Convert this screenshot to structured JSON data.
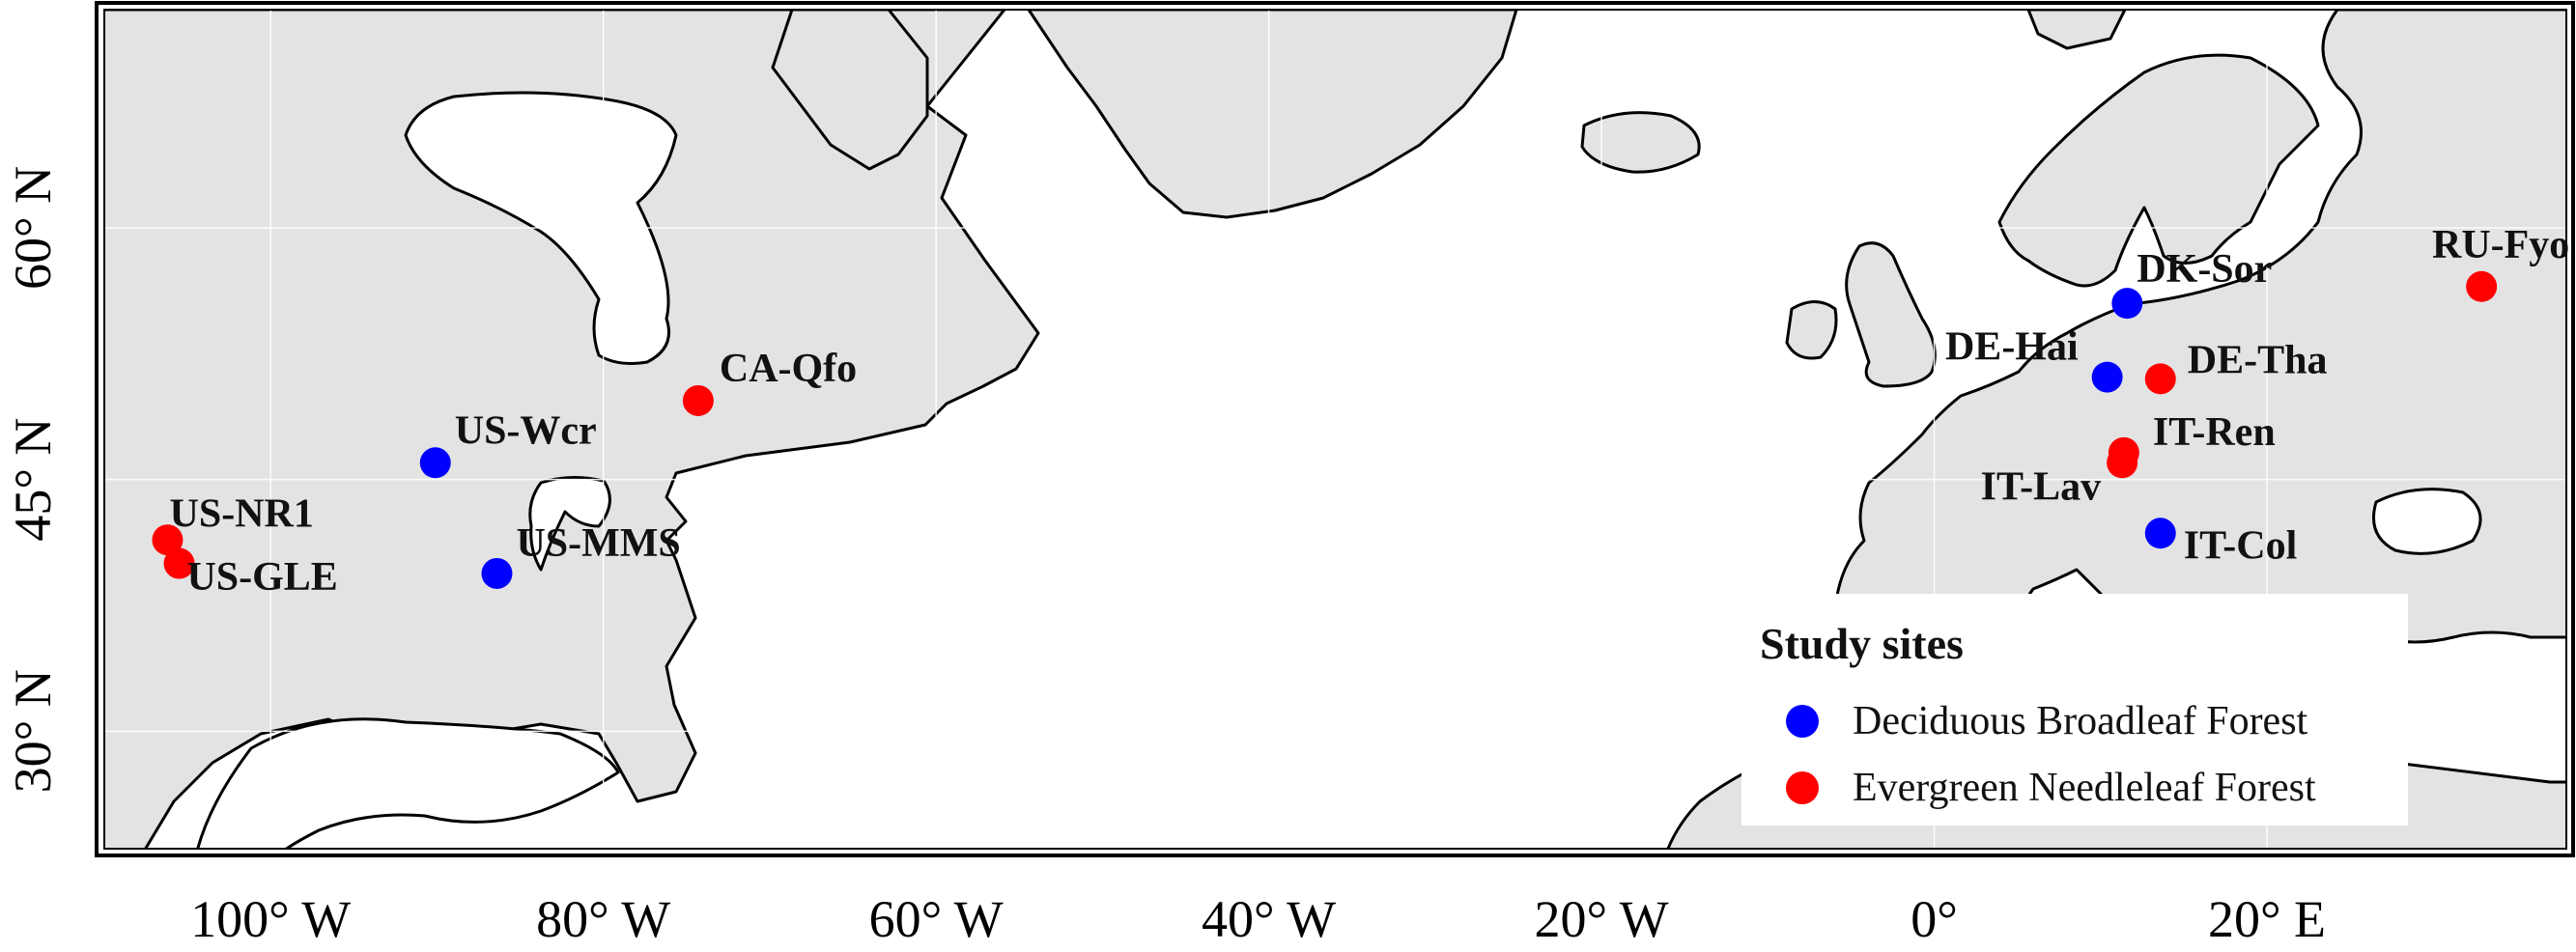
{
  "map": {
    "land_color": "#e3e3e3",
    "ocean_color": "#ffffff",
    "coastline_color": "#000000",
    "graticule": true,
    "lon_range": [
      -110,
      38
    ],
    "lat_range": [
      23,
      73
    ],
    "x_ticks": [
      {
        "lon": -100,
        "label": "100° W"
      },
      {
        "lon": -80,
        "label": "80° W"
      },
      {
        "lon": -60,
        "label": "60° W"
      },
      {
        "lon": -40,
        "label": "40° W"
      },
      {
        "lon": -20,
        "label": "20° W"
      },
      {
        "lon": 0,
        "label": "0°"
      },
      {
        "lon": 20,
        "label": "20° E"
      }
    ],
    "y_ticks": [
      {
        "lat": 30,
        "label": "30° N"
      },
      {
        "lat": 45,
        "label": "45° N"
      },
      {
        "lat": 60,
        "label": "60° N"
      }
    ]
  },
  "legend": {
    "title": "Study sites",
    "placement": "bottom-right",
    "entries": [
      {
        "label": "Deciduous Broadleaf Forest",
        "color": "#0000ff"
      },
      {
        "label": "Evergreen Needleleaf Forest",
        "color": "#ff0000"
      }
    ]
  },
  "sites": [
    {
      "id": "US-NR1",
      "lon": -105.5,
      "lat": 40.0,
      "type": "Evergreen Needleleaf Forest",
      "color": "#ff0000"
    },
    {
      "id": "US-GLE",
      "lon": -106.2,
      "lat": 41.4,
      "type": "Evergreen Needleleaf Forest",
      "color": "#ff0000"
    },
    {
      "id": "US-Wcr",
      "lon": -90.1,
      "lat": 46.0,
      "type": "Deciduous Broadleaf Forest",
      "color": "#0000ff"
    },
    {
      "id": "US-MMS",
      "lon": -86.4,
      "lat": 39.4,
      "type": "Deciduous Broadleaf Forest",
      "color": "#0000ff"
    },
    {
      "id": "CA-Qfo",
      "lon": -74.3,
      "lat": 49.7,
      "type": "Evergreen Needleleaf Forest",
      "color": "#ff0000"
    },
    {
      "id": "DK-Sor",
      "lon": 11.6,
      "lat": 55.5,
      "type": "Deciduous Broadleaf Forest",
      "color": "#0000ff"
    },
    {
      "id": "DE-Hai",
      "lon": 10.4,
      "lat": 51.1,
      "type": "Deciduous Broadleaf Forest",
      "color": "#0000ff"
    },
    {
      "id": "DE-Tha",
      "lon": 13.6,
      "lat": 51.0,
      "type": "Evergreen Needleleaf Forest",
      "color": "#ff0000"
    },
    {
      "id": "IT-Ren",
      "lon": 11.4,
      "lat": 46.6,
      "type": "Evergreen Needleleaf Forest",
      "color": "#ff0000"
    },
    {
      "id": "IT-Lav",
      "lon": 11.3,
      "lat": 46.0,
      "type": "Evergreen Needleleaf Forest",
      "color": "#ff0000"
    },
    {
      "id": "IT-Col",
      "lon": 13.6,
      "lat": 41.8,
      "type": "Deciduous Broadleaf Forest",
      "color": "#0000ff"
    },
    {
      "id": "RU-Fyo",
      "lon": 32.9,
      "lat": 56.5,
      "type": "Evergreen Needleleaf Forest",
      "color": "#ff0000"
    }
  ]
}
